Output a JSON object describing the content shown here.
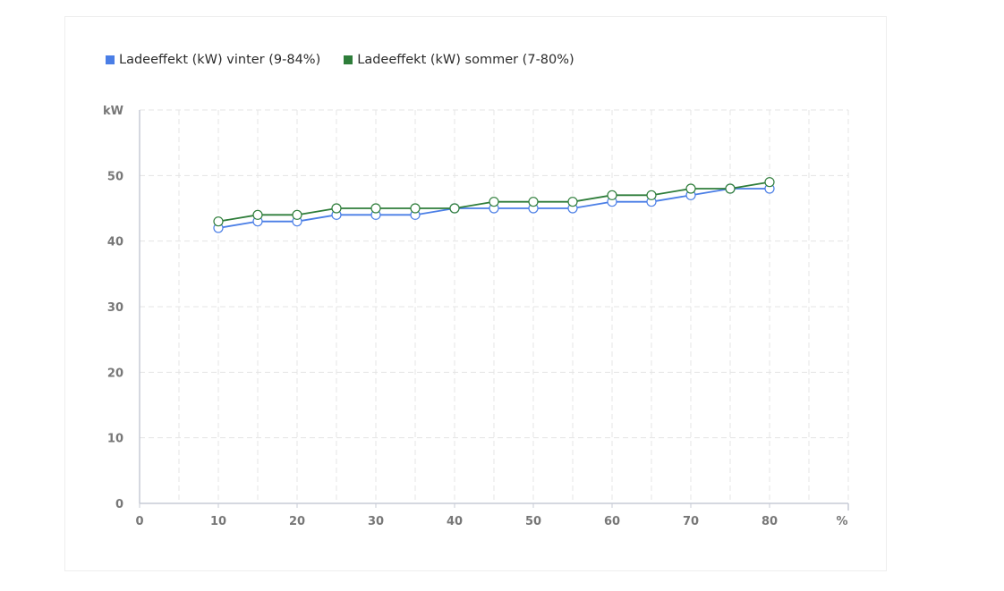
{
  "chart_data": {
    "type": "line",
    "x": [
      10,
      15,
      20,
      25,
      30,
      35,
      40,
      45,
      50,
      55,
      60,
      65,
      70,
      75,
      80
    ],
    "series": [
      {
        "name": "Ladeeffekt (kW) vinter (9-84%)",
        "color": "#4a7ee6",
        "values": [
          42,
          43,
          43,
          44,
          44,
          44,
          45,
          45,
          45,
          45,
          46,
          46,
          47,
          48,
          48
        ]
      },
      {
        "name": "Ladeeffekt (kW) sommer (7-80%)",
        "color": "#2e7d3a",
        "values": [
          43,
          44,
          44,
          45,
          45,
          45,
          45,
          46,
          46,
          46,
          47,
          47,
          48,
          48,
          49
        ]
      }
    ],
    "xlabel": "%",
    "ylabel": "kW",
    "xlim": [
      0,
      90
    ],
    "ylim": [
      0,
      60
    ],
    "x_ticks": [
      0,
      10,
      20,
      30,
      40,
      50,
      60,
      70,
      80
    ],
    "y_ticks": [
      0,
      10,
      20,
      30,
      40,
      50
    ],
    "grid": true,
    "legend_position": "top-left"
  }
}
